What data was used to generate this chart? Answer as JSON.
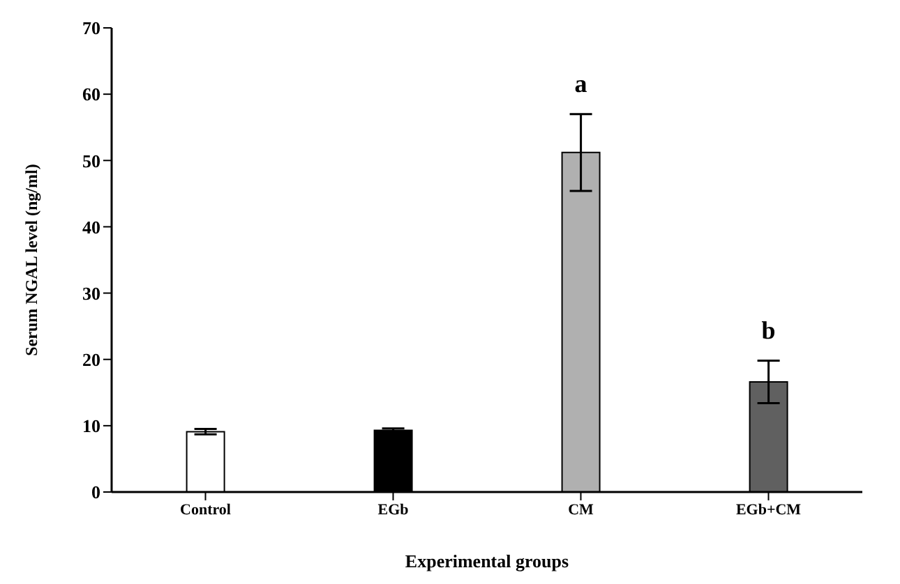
{
  "chart_data": {
    "type": "bar",
    "xlabel": "Experimental  groups",
    "ylabel": "Serum NGAL level (ng/ml)",
    "categories": [
      "Control",
      "EGb",
      "CM",
      "EGb+CM"
    ],
    "values": [
      9.1,
      9.3,
      51.2,
      16.6
    ],
    "colors": [
      "#ffffff",
      "#000000",
      "#b0b0b0",
      "#606060"
    ],
    "errors": [
      0.4,
      0.3,
      5.8,
      3.2
    ],
    "ylim": [
      0,
      70
    ],
    "yticks": [
      0,
      10,
      20,
      30,
      40,
      50,
      60,
      70
    ],
    "grid": false,
    "legend": false,
    "annotations": [
      "a",
      "b"
    ]
  }
}
